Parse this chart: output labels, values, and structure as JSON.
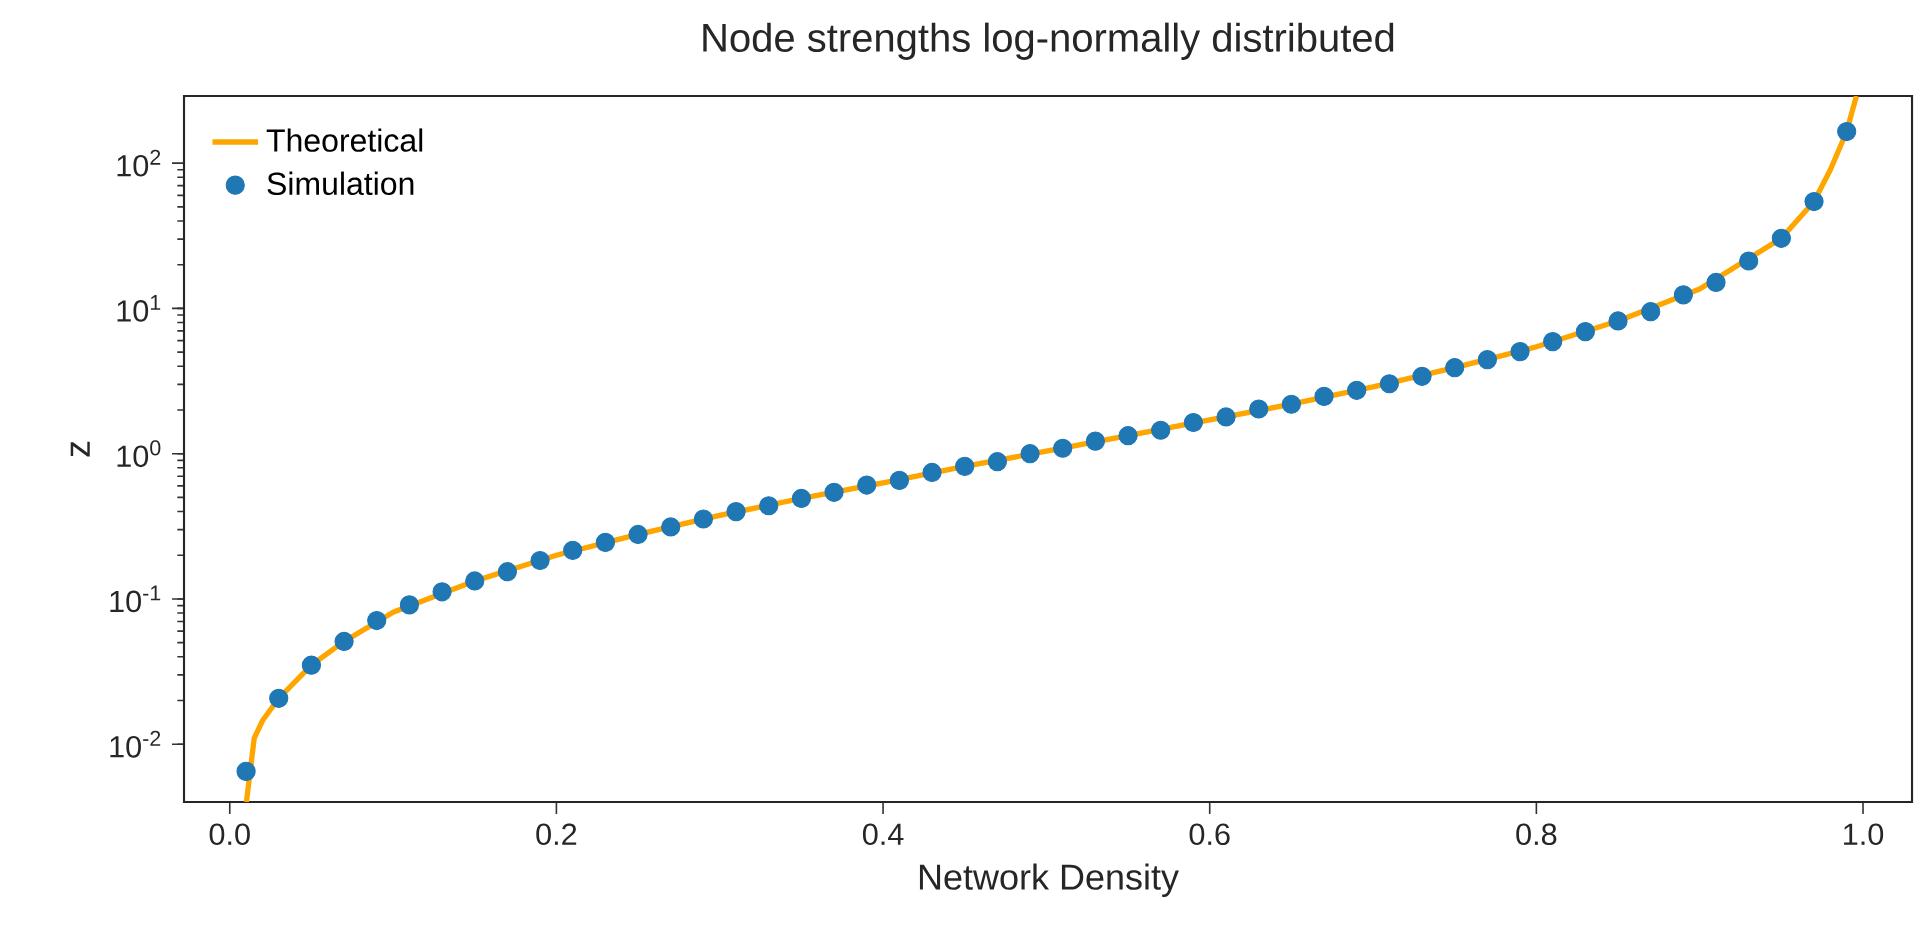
{
  "chart_data": {
    "type": "line",
    "title": "Node strengths log-normally distributed",
    "xlabel": "Network Density",
    "ylabel": "z",
    "log": "y",
    "grid": false,
    "legend": "top left",
    "xlim": [
      -0.028,
      1.03
    ],
    "ylim": [
      0.004,
      290
    ],
    "xticks": [
      {
        "value": 0,
        "label": "0.0"
      },
      0.2,
      0.4,
      0.6,
      0.8,
      {
        "value": 1,
        "label": "1.0"
      }
    ],
    "yticks": [
      {
        "value": 0.01,
        "label": "10$^{-2}$"
      },
      {
        "value": 0.1,
        "label": "10$^{-1}$"
      },
      {
        "value": 1,
        "label": "10$^{0}$"
      },
      {
        "value": 10,
        "label": "10$^{1}$"
      },
      {
        "value": 100,
        "label": "10$^{2}$"
      }
    ],
    "series": [
      {
        "name": "Theoretical",
        "color": "#ffa500",
        "marker": "none",
        "line_style": "solid",
        "x": [
          0.0102,
          0.015,
          0.02,
          0.03,
          0.05,
          0.07,
          0.1,
          0.15,
          0.2,
          0.25,
          0.3,
          0.35,
          0.4,
          0.45,
          0.5,
          0.55,
          0.6,
          0.65,
          0.7,
          0.75,
          0.8,
          0.85,
          0.9,
          0.95,
          0.97,
          0.98,
          0.99,
          0.993,
          0.996
        ],
        "values": [
          0.004,
          0.011,
          0.0145,
          0.0207,
          0.035,
          0.051,
          0.081,
          0.133,
          0.2,
          0.278,
          0.376,
          0.492,
          0.63,
          0.818,
          1.04,
          1.33,
          1.71,
          2.19,
          2.88,
          3.91,
          5.45,
          8.2,
          13.6,
          30.4,
          54.4,
          90,
          165,
          220,
          290
        ]
      },
      {
        "name": "Simulation",
        "type": "scatter",
        "color": "#1f77b4",
        "marker": "circle",
        "x": [
          0.01,
          0.03,
          0.05,
          0.07,
          0.09,
          0.11,
          0.13,
          0.15,
          0.17,
          0.19,
          0.21,
          0.23,
          0.25,
          0.27,
          0.29,
          0.31,
          0.33,
          0.35,
          0.37,
          0.39,
          0.41,
          0.43,
          0.45,
          0.47,
          0.49,
          0.51,
          0.53,
          0.55,
          0.57,
          0.59,
          0.61,
          0.63,
          0.65,
          0.67,
          0.69,
          0.71,
          0.73,
          0.75,
          0.77,
          0.79,
          0.81,
          0.83,
          0.85,
          0.87,
          0.89,
          0.91,
          0.93,
          0.95,
          0.97,
          0.99
        ],
        "values": [
          0.0065,
          0.0207,
          0.035,
          0.051,
          0.071,
          0.091,
          0.112,
          0.133,
          0.154,
          0.184,
          0.216,
          0.245,
          0.278,
          0.313,
          0.355,
          0.399,
          0.438,
          0.492,
          0.542,
          0.608,
          0.655,
          0.743,
          0.818,
          0.881,
          1.0,
          1.09,
          1.22,
          1.33,
          1.45,
          1.64,
          1.79,
          2.03,
          2.19,
          2.48,
          2.73,
          3.03,
          3.41,
          3.91,
          4.44,
          5.04,
          5.91,
          6.92,
          8.2,
          9.5,
          12.4,
          15.1,
          21.2,
          30.4,
          54.4,
          165
        ]
      }
    ]
  }
}
